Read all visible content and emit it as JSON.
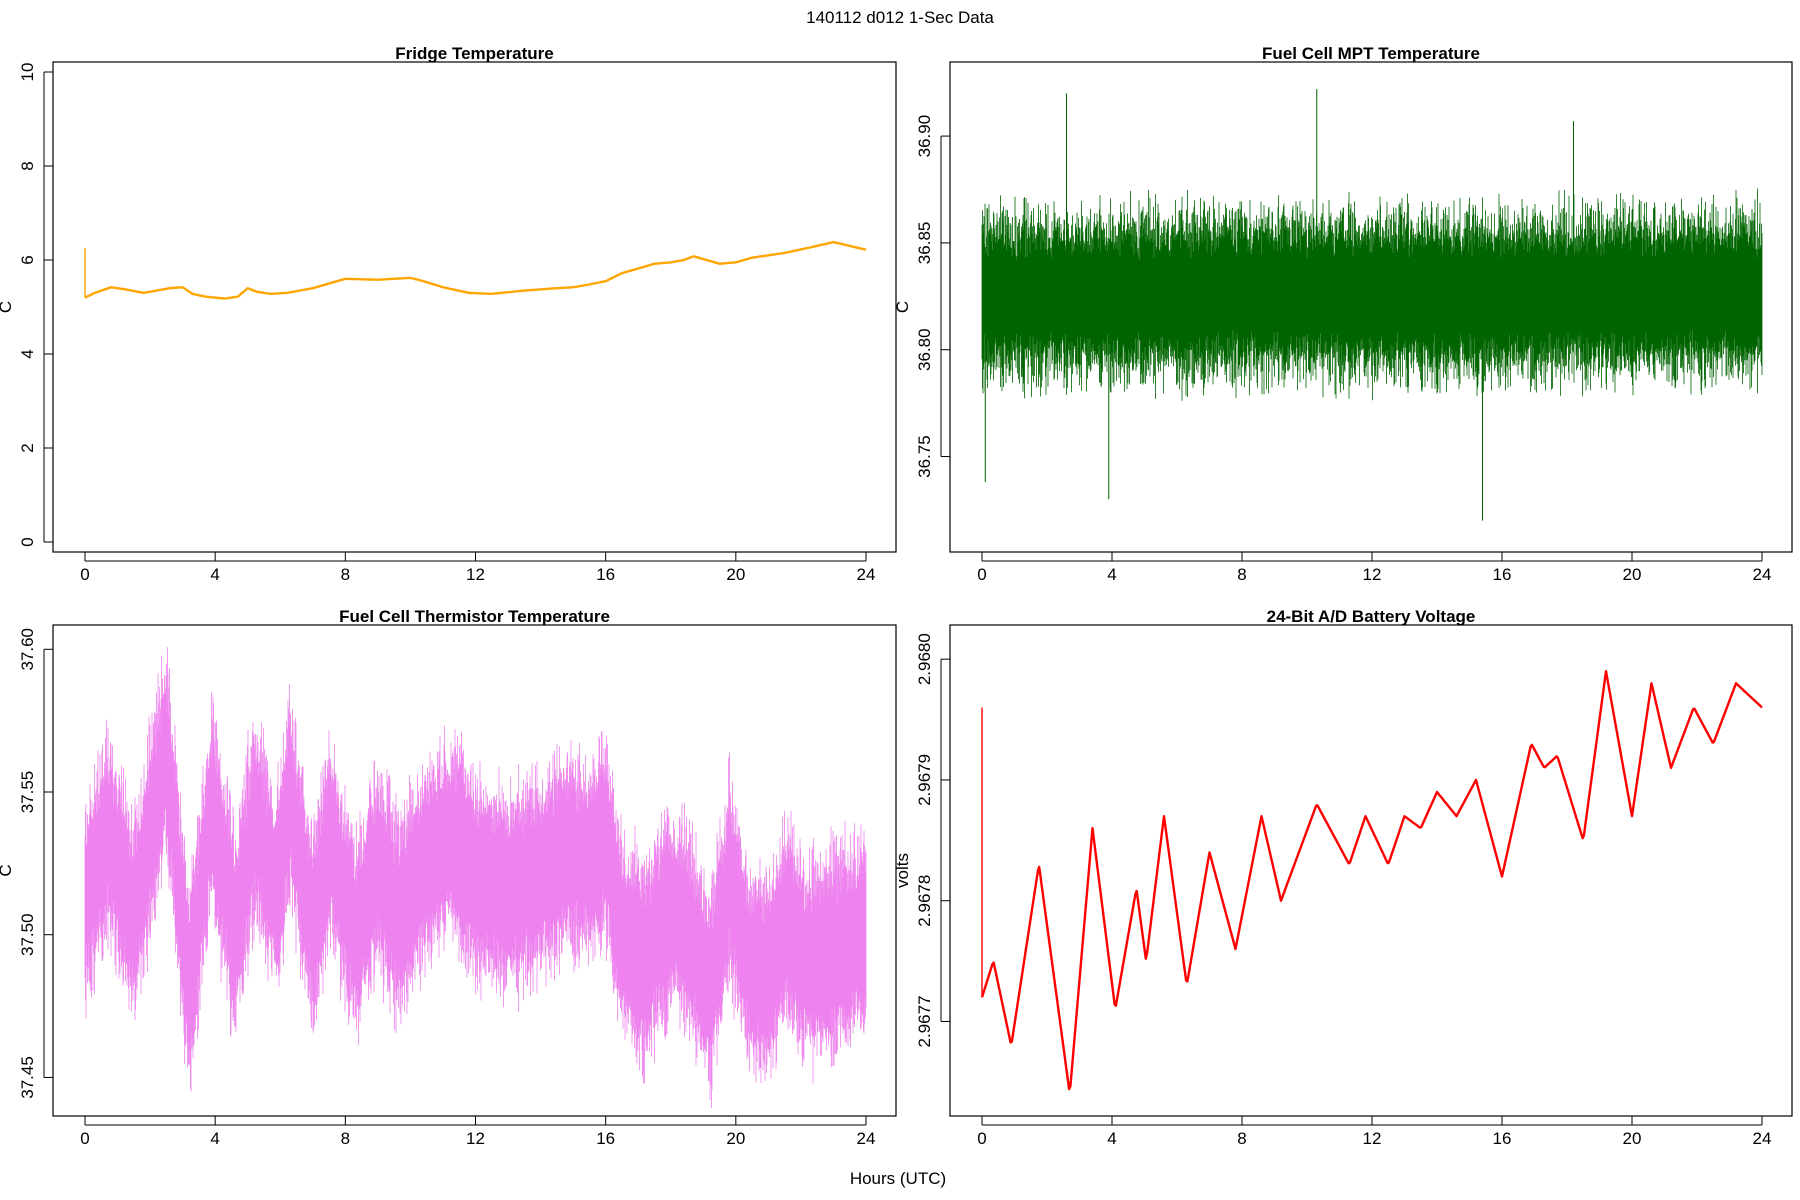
{
  "figure": {
    "supertitle": "140112   d012   1-Sec Data",
    "xlabel": "Hours (UTC)"
  },
  "chart_data": [
    {
      "type": "line",
      "title": "Fridge Temperature",
      "ylabel": "C",
      "xlabel": "",
      "color": "#FFA500",
      "xlim": [
        0,
        24
      ],
      "ylim": [
        0,
        10
      ],
      "x_ticks": [
        0,
        4,
        8,
        12,
        16,
        20,
        24
      ],
      "y_ticks": [
        0,
        2,
        4,
        6,
        8,
        10
      ],
      "y_tick_labels": [
        "0",
        "2",
        "4",
        "6",
        "8",
        "10"
      ],
      "spike": {
        "x": 0.0,
        "y": 6.25
      },
      "noise": 0.0,
      "series": [
        {
          "x": [
            0,
            0.3,
            0.8,
            1.2,
            1.8,
            2.2,
            2.6,
            3.0,
            3.3,
            3.7,
            4.3,
            4.7,
            5.0,
            5.3,
            5.7,
            6.2,
            7.0,
            8.0,
            9.0,
            10.0,
            10.4,
            11.0,
            11.8,
            12.5,
            13.5,
            14.5,
            15.0,
            15.5,
            16.0,
            16.5,
            17.0,
            17.5,
            18.0,
            18.4,
            18.7,
            19.0,
            19.5,
            20.0,
            20.5,
            21.5,
            22.5,
            23.0,
            23.5,
            24.0
          ],
          "y": [
            5.2,
            5.3,
            5.42,
            5.38,
            5.3,
            5.35,
            5.4,
            5.42,
            5.28,
            5.22,
            5.18,
            5.22,
            5.4,
            5.32,
            5.28,
            5.3,
            5.4,
            5.6,
            5.58,
            5.62,
            5.55,
            5.42,
            5.3,
            5.28,
            5.35,
            5.4,
            5.42,
            5.48,
            5.55,
            5.72,
            5.82,
            5.92,
            5.95,
            6.0,
            6.08,
            6.02,
            5.92,
            5.95,
            6.05,
            6.15,
            6.3,
            6.38,
            6.3,
            6.22
          ]
        }
      ]
    },
    {
      "type": "line",
      "title": "Fuel Cell MPT Temperature",
      "ylabel": "C",
      "xlabel": "",
      "color": "#006400",
      "xlim": [
        0,
        24
      ],
      "ylim": [
        36.71,
        36.93
      ],
      "x_ticks": [
        0,
        4,
        8,
        12,
        16,
        20,
        24
      ],
      "y_ticks": [
        36.75,
        36.8,
        36.85,
        36.9
      ],
      "y_tick_labels": [
        "36.75",
        "36.80",
        "36.85",
        "36.90"
      ],
      "noise": 0.05,
      "outliers": [
        {
          "x": 2.6,
          "y": 36.92
        },
        {
          "x": 10.3,
          "y": 36.922
        },
        {
          "x": 15.4,
          "y": 36.72
        },
        {
          "x": 3.9,
          "y": 36.73
        },
        {
          "x": 18.2,
          "y": 36.907
        },
        {
          "x": 0.1,
          "y": 36.738
        }
      ],
      "series": [
        {
          "x": [
            0,
            4,
            8,
            12,
            16,
            20,
            24
          ],
          "y": [
            36.825,
            36.825,
            36.826,
            36.826,
            36.825,
            36.826,
            36.826
          ]
        }
      ]
    },
    {
      "type": "line",
      "title": "Fuel Cell Thermistor Temperature",
      "ylabel": "C",
      "xlabel": "",
      "color": "#EE82EE",
      "xlim": [
        0,
        24
      ],
      "ylim": [
        37.44,
        37.605
      ],
      "x_ticks": [
        0,
        4,
        8,
        12,
        16,
        20,
        24
      ],
      "y_ticks": [
        37.45,
        37.5,
        37.55,
        37.6
      ],
      "y_tick_labels": [
        "37.45",
        "37.50",
        "37.55",
        "37.60"
      ],
      "noise": 0.045,
      "series": [
        {
          "x": [
            0,
            0.7,
            1.5,
            2.5,
            3.2,
            3.9,
            4.6,
            5.2,
            5.9,
            6.3,
            7.0,
            7.5,
            8.3,
            9.0,
            9.6,
            10.5,
            11.3,
            12.0,
            13.0,
            14.0,
            14.8,
            15.5,
            16.0,
            16.5,
            17.2,
            18.0,
            18.6,
            19.2,
            19.8,
            20.4,
            21.0,
            21.6,
            22.2,
            23.0,
            24.0
          ],
          "y": [
            37.51,
            37.535,
            37.505,
            37.565,
            37.48,
            37.545,
            37.5,
            37.54,
            37.515,
            37.55,
            37.5,
            37.535,
            37.5,
            37.525,
            37.505,
            37.525,
            37.535,
            37.52,
            37.515,
            37.52,
            37.53,
            37.525,
            37.535,
            37.5,
            37.49,
            37.51,
            37.5,
            37.48,
            37.52,
            37.49,
            37.485,
            37.505,
            37.49,
            37.495,
            37.5
          ]
        }
      ]
    },
    {
      "type": "line",
      "title": "24-Bit A/D Battery Voltage",
      "ylabel": "volts",
      "xlabel": "",
      "color": "#FF0000",
      "xlim": [
        0,
        24
      ],
      "ylim": [
        2.96763,
        2.96802
      ],
      "x_ticks": [
        0,
        4,
        8,
        12,
        16,
        20,
        24
      ],
      "y_ticks": [
        2.9677,
        2.9678,
        2.9679,
        2.968
      ],
      "y_tick_labels": [
        "2.9677",
        "2.9678",
        "2.9679",
        "2.9680"
      ],
      "spike": {
        "x": 0.0,
        "y": 2.96796
      },
      "noise": 0.0,
      "series": [
        {
          "x": [
            0,
            0.35,
            0.9,
            1.75,
            2.7,
            3.4,
            4.1,
            4.75,
            5.05,
            5.6,
            6.3,
            7.0,
            7.8,
            8.6,
            9.2,
            10.3,
            11.3,
            11.8,
            12.5,
            13.0,
            13.5,
            14.0,
            14.6,
            15.2,
            16.0,
            16.9,
            17.3,
            17.7,
            18.5,
            19.2,
            20.0,
            20.6,
            21.2,
            21.9,
            22.5,
            23.2,
            24.0
          ],
          "y": [
            2.96772,
            2.96775,
            2.96768,
            2.96783,
            2.96764,
            2.96786,
            2.96771,
            2.96781,
            2.96775,
            2.96787,
            2.96773,
            2.96784,
            2.96776,
            2.96787,
            2.9678,
            2.96788,
            2.96783,
            2.96787,
            2.96783,
            2.96787,
            2.96786,
            2.96789,
            2.96787,
            2.9679,
            2.96782,
            2.96793,
            2.96791,
            2.96792,
            2.96785,
            2.96799,
            2.96787,
            2.96798,
            2.96791,
            2.96796,
            2.96793,
            2.96798,
            2.96796
          ]
        }
      ]
    }
  ]
}
